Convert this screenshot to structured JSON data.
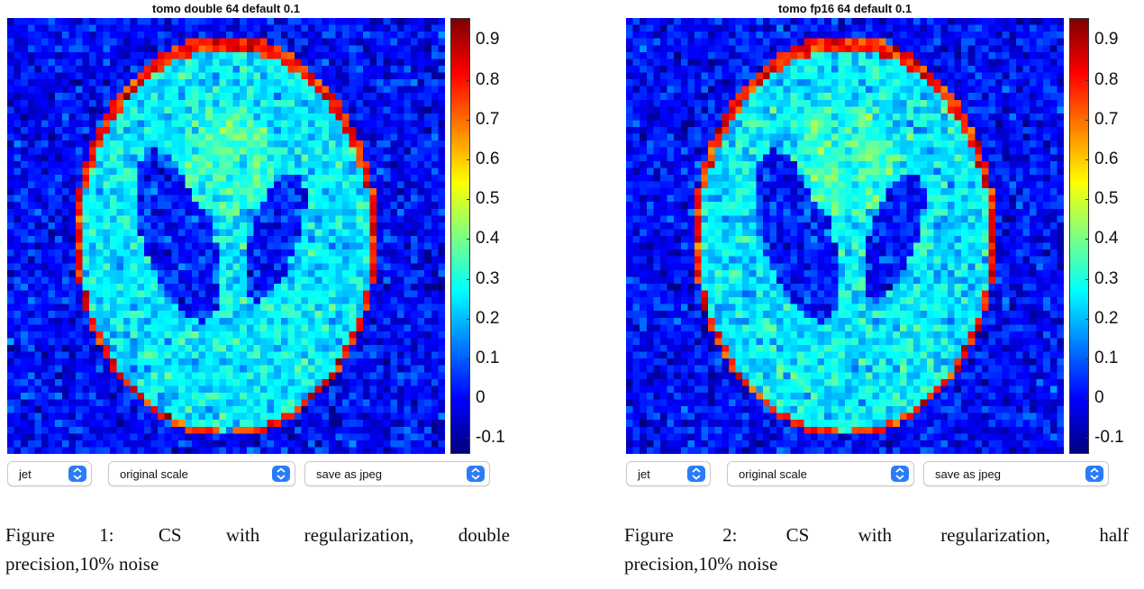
{
  "colors": {
    "accent": "#2a7df6"
  },
  "colorbar_ticks": [
    "0.9",
    "0.8",
    "0.7",
    "0.6",
    "0.5",
    "0.4",
    "0.3",
    "0.2",
    "0.1",
    "0",
    "-0.1"
  ],
  "panels": [
    {
      "title": "tomo double 64 default 0.1",
      "colormap_select": "jet",
      "scale_select": "original scale",
      "save_select": "save as jpeg",
      "caption_words": [
        "Figure",
        "1:",
        "CS",
        "with",
        "regularization,",
        "double"
      ],
      "caption_line2": "precision,10% noise"
    },
    {
      "title": "tomo fp16 64 default 0.1",
      "colormap_select": "jet",
      "scale_select": "original scale",
      "save_select": "save as jpeg",
      "caption_words": [
        "Figure",
        "2:",
        "CS",
        "with",
        "regularization,",
        "half"
      ],
      "caption_line2": "precision,10% noise"
    }
  ]
}
